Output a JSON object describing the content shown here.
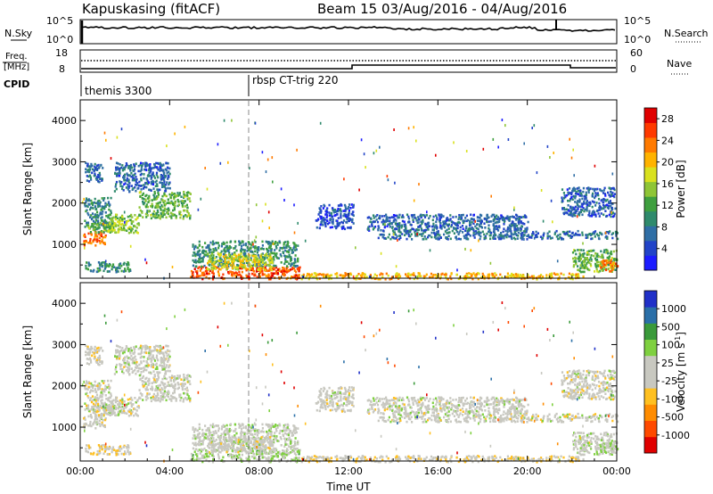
{
  "header": {
    "station": "Kapuskasing (fitACF)",
    "beam": "Beam 15 03/Aug/2016 - 04/Aug/2016"
  },
  "panels": {
    "nsky": {
      "left_label": "N.Sky",
      "right_label": "N.Search",
      "left_ticks": [
        "10^5",
        "10^0"
      ],
      "right_ticks": [
        "10^5",
        "10^0"
      ]
    },
    "freq": {
      "left_label_1": "Freq.",
      "left_label_2": "[MHz]",
      "left_ticks": [
        "18",
        "8"
      ],
      "right_label": "Nave",
      "right_ticks": [
        "60",
        "0"
      ]
    },
    "cpid": {
      "label": "CPID",
      "programs": [
        {
          "name": "themis 3300",
          "start_hour": 0
        },
        {
          "name": "rbsp CT-trig 220",
          "start_hour": 7.5
        }
      ]
    }
  },
  "x_axis": {
    "label": "Time UT",
    "ticks": [
      "00:00",
      "04:00",
      "08:00",
      "12:00",
      "16:00",
      "20:00",
      "00:00"
    ]
  },
  "chart_data": [
    {
      "type": "heatmap",
      "title": "",
      "xlabel": "Time UT",
      "ylabel": "Slant Range [km]",
      "xlim": [
        0,
        24
      ],
      "ylim": [
        180,
        4500
      ],
      "yticks": [
        "1000",
        "2000",
        "3000",
        "4000"
      ],
      "colorbar": {
        "label": "Power [dB]",
        "tick_labels": [
          "4",
          "8",
          "12",
          "16",
          "20",
          "24",
          "28"
        ],
        "range": [
          0,
          30
        ],
        "colors": [
          "#1c1cff",
          "#2244c8",
          "#2f6ea5",
          "#2f8a6c",
          "#3f9f3f",
          "#8fc536",
          "#d9e11f",
          "#ffb300",
          "#ff7a00",
          "#ff3a00",
          "#e00000"
        ]
      },
      "regions": [
        {
          "t0": 0.15,
          "t1": 1.4,
          "r0": 1400,
          "r1": 2150,
          "v": 9
        },
        {
          "t0": 0.1,
          "t1": 1.1,
          "r0": 1000,
          "r1": 1350,
          "v": 24
        },
        {
          "t0": 0.3,
          "t1": 1.6,
          "r0": 1300,
          "r1": 1550,
          "v": 14
        },
        {
          "t0": 0.2,
          "t1": 1.0,
          "r0": 2500,
          "r1": 3000,
          "v": 7
        },
        {
          "t0": 1.2,
          "t1": 2.6,
          "r0": 1300,
          "r1": 1750,
          "v": 15
        },
        {
          "t0": 2.6,
          "t1": 4.9,
          "r0": 1650,
          "r1": 2300,
          "v": 13
        },
        {
          "t0": 1.5,
          "t1": 4.0,
          "r0": 2300,
          "r1": 3000,
          "v": 6
        },
        {
          "t0": 0.2,
          "t1": 2.2,
          "r0": 350,
          "r1": 600,
          "v": 10
        },
        {
          "t0": 4.9,
          "t1": 9.8,
          "r0": 180,
          "r1": 480,
          "v": 25
        },
        {
          "t0": 5.0,
          "t1": 9.7,
          "r0": 480,
          "r1": 1100,
          "v": 10
        },
        {
          "t0": 5.6,
          "t1": 8.6,
          "r0": 400,
          "r1": 800,
          "v": 18
        },
        {
          "t0": 9.8,
          "t1": 22.5,
          "r0": 180,
          "r1": 330,
          "v": 20
        },
        {
          "t0": 13.3,
          "t1": 24.0,
          "r0": 1150,
          "r1": 1350,
          "v": 7
        },
        {
          "t0": 12.8,
          "t1": 20.0,
          "r0": 1350,
          "r1": 1750,
          "v": 6
        },
        {
          "t0": 22.0,
          "t1": 24.0,
          "r0": 350,
          "r1": 900,
          "v": 13
        },
        {
          "t0": 23.2,
          "t1": 24.0,
          "r0": 350,
          "r1": 650,
          "v": 23
        },
        {
          "t0": 21.5,
          "t1": 23.9,
          "r0": 1700,
          "r1": 2400,
          "v": 6
        },
        {
          "t0": 10.5,
          "t1": 12.2,
          "r0": 1400,
          "r1": 2000,
          "v": 5
        }
      ]
    },
    {
      "type": "heatmap",
      "title": "",
      "xlabel": "Time UT",
      "ylabel": "Slant Range [km]",
      "xlim": [
        0,
        24
      ],
      "ylim": [
        180,
        4500
      ],
      "yticks": [
        "1000",
        "2000",
        "3000",
        "4000"
      ],
      "colorbar": {
        "label": "Velocity [m s^-1]",
        "tick_labels": [
          "1000",
          "500",
          "100",
          "25",
          "-25",
          "-100",
          "-500",
          "-1000"
        ],
        "range": [
          -1200,
          1200
        ],
        "colors": [
          "#e00000",
          "#ff4a00",
          "#ff8c00",
          "#ffc020",
          "#c8c8c0",
          "#c8c8c0",
          "#7fd040",
          "#3a9a3a",
          "#2a6fa8",
          "#2030c8"
        ]
      },
      "regions": [
        {
          "t0": 0.15,
          "t1": 1.4,
          "r0": 1400,
          "r1": 2150,
          "v": 0
        },
        {
          "t0": 0.1,
          "t1": 1.1,
          "r0": 1000,
          "r1": 1350,
          "v": 0
        },
        {
          "t0": 0.3,
          "t1": 1.6,
          "r0": 1300,
          "r1": 1550,
          "v": -10
        },
        {
          "t0": 0.2,
          "t1": 1.0,
          "r0": 2500,
          "r1": 3000,
          "v": -60
        },
        {
          "t0": 1.2,
          "t1": 2.6,
          "r0": 1300,
          "r1": 1750,
          "v": 5
        },
        {
          "t0": 2.6,
          "t1": 4.9,
          "r0": 1650,
          "r1": 2300,
          "v": 0
        },
        {
          "t0": 1.5,
          "t1": 4.0,
          "r0": 2300,
          "r1": 3000,
          "v": 10
        },
        {
          "t0": 0.2,
          "t1": 2.2,
          "r0": 350,
          "r1": 600,
          "v": -120
        },
        {
          "t0": 4.9,
          "t1": 9.8,
          "r0": 180,
          "r1": 480,
          "v": 200
        },
        {
          "t0": 5.0,
          "t1": 9.7,
          "r0": 480,
          "r1": 1100,
          "v": 60
        },
        {
          "t0": 5.6,
          "t1": 8.6,
          "r0": 400,
          "r1": 800,
          "v": 0
        },
        {
          "t0": 9.8,
          "t1": 22.5,
          "r0": 180,
          "r1": 330,
          "v": -150
        },
        {
          "t0": 13.3,
          "t1": 24.0,
          "r0": 1150,
          "r1": 1350,
          "v": 0
        },
        {
          "t0": 12.8,
          "t1": 20.0,
          "r0": 1350,
          "r1": 1750,
          "v": 0
        },
        {
          "t0": 22.0,
          "t1": 24.0,
          "r0": 350,
          "r1": 900,
          "v": 40
        },
        {
          "t0": 23.2,
          "t1": 24.0,
          "r0": 350,
          "r1": 650,
          "v": 150
        },
        {
          "t0": 21.5,
          "t1": 23.9,
          "r0": 1700,
          "r1": 2400,
          "v": 0
        },
        {
          "t0": 10.5,
          "t1": 12.2,
          "r0": 1400,
          "r1": 2000,
          "v": 0
        }
      ]
    }
  ]
}
